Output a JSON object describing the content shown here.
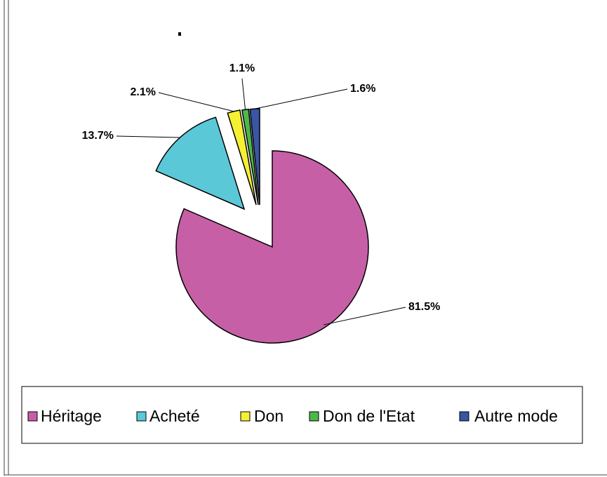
{
  "chart_data": {
    "type": "pie",
    "categories": [
      "Héritage",
      "Acheté",
      "Don",
      "Don de l'Etat",
      "Autre mode"
    ],
    "values": [
      81.5,
      13.7,
      2.1,
      1.1,
      1.6
    ],
    "value_labels": [
      "81.5%",
      "13.7%",
      "2.1%",
      "1.1%",
      "1.6%"
    ],
    "colors": [
      "#c75fa7",
      "#5bc8d8",
      "#f5f032",
      "#4db848",
      "#3a55a4"
    ],
    "legend": "bottom"
  }
}
